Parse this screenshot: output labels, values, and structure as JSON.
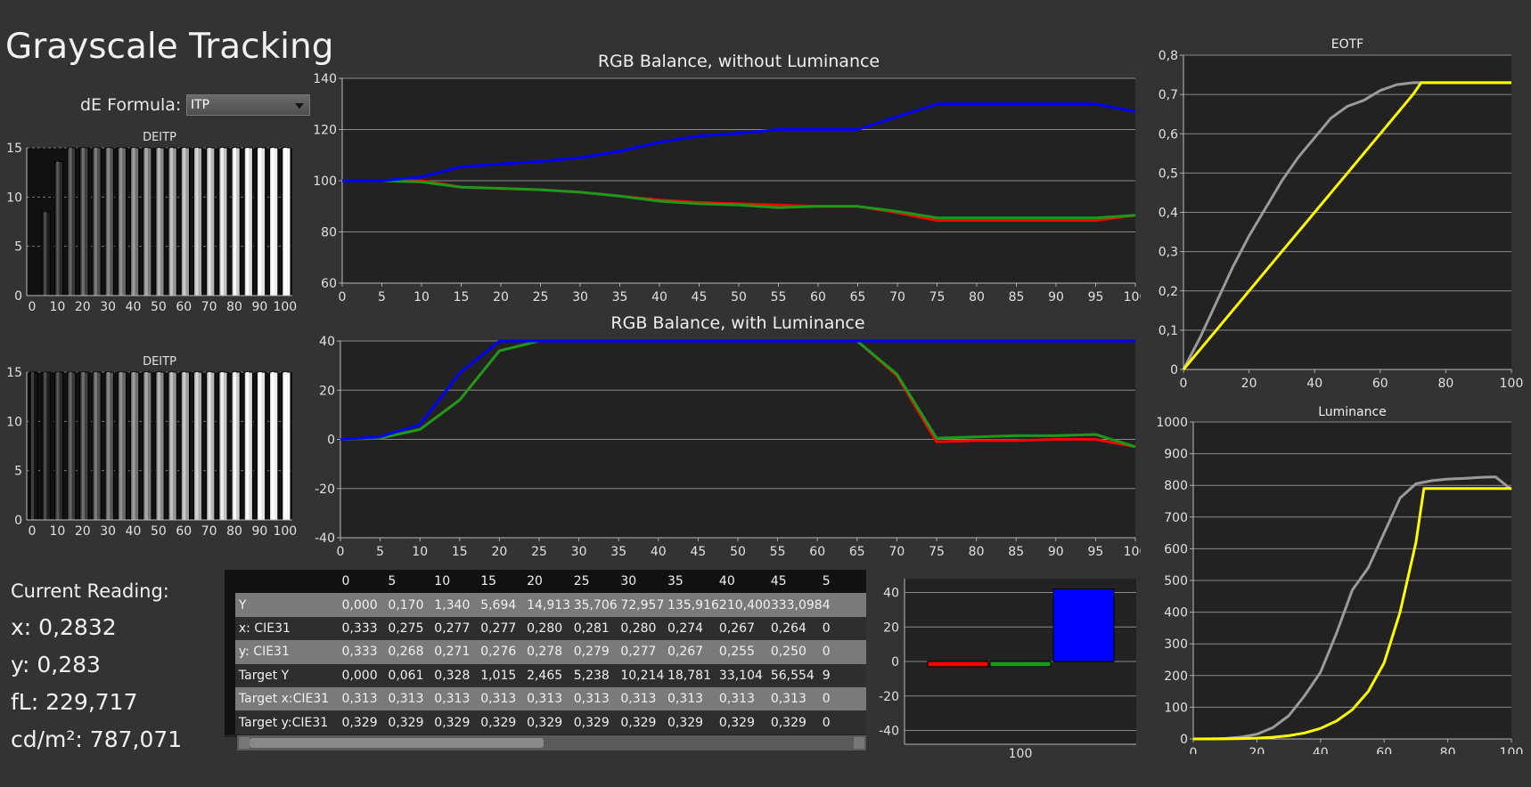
{
  "title": "Grayscale Tracking",
  "de_formula": {
    "label": "dE Formula:",
    "value": "ITP"
  },
  "chart_data": [
    {
      "id": "deitp-1",
      "type": "bar",
      "title": "DEITP",
      "x": [
        0,
        5,
        10,
        15,
        20,
        25,
        30,
        35,
        40,
        45,
        50,
        55,
        60,
        65,
        70,
        75,
        80,
        85,
        90,
        95,
        100
      ],
      "values": [
        0,
        8.5,
        13.6,
        15,
        15,
        15,
        15,
        15,
        15,
        15,
        15,
        15,
        15,
        15,
        15,
        15,
        15,
        15,
        15,
        15,
        15
      ],
      "ylim": [
        0,
        15
      ],
      "yticks": [
        0,
        5,
        10,
        15
      ],
      "xticks_top": [
        "0",
        "10",
        "20",
        "30",
        "40",
        "50",
        "60",
        "70",
        "80",
        "90",
        "100"
      ],
      "xticks_bottom": [
        "5",
        "15",
        "25",
        "35",
        "45",
        "55",
        "65",
        "75",
        "85",
        "95"
      ]
    },
    {
      "id": "deitp-2",
      "type": "bar",
      "title": "DEITP",
      "x": [
        0,
        5,
        10,
        15,
        20,
        25,
        30,
        35,
        40,
        45,
        50,
        55,
        60,
        65,
        70,
        75,
        80,
        85,
        90,
        95,
        100
      ],
      "values": [
        15,
        15,
        15,
        15,
        15,
        15,
        15,
        15,
        15,
        15,
        15,
        15,
        15,
        15,
        15,
        15,
        15,
        15,
        15,
        15,
        15
      ],
      "ylim": [
        0,
        15
      ],
      "yticks": [
        0,
        5,
        10,
        15
      ],
      "xticks_top": [
        "0",
        "10",
        "20",
        "30",
        "40",
        "50",
        "60",
        "70",
        "80",
        "90",
        "100"
      ],
      "xticks_bottom": [
        "5",
        "15",
        "25",
        "35",
        "45",
        "55",
        "65",
        "75",
        "85",
        "95"
      ]
    },
    {
      "id": "rgb-no-lum",
      "type": "line",
      "title": "RGB Balance, without Luminance",
      "x": [
        0,
        5,
        10,
        15,
        20,
        25,
        30,
        35,
        40,
        45,
        50,
        55,
        60,
        65,
        70,
        75,
        80,
        85,
        90,
        95,
        100
      ],
      "xlim": [
        0,
        100
      ],
      "ylim": [
        60,
        140
      ],
      "yticks": [
        60,
        80,
        100,
        120,
        140
      ],
      "series": [
        {
          "color": "#ff0000",
          "values": [
            100,
            100,
            100,
            97.5,
            97,
            96.5,
            95.5,
            94,
            92.5,
            91.5,
            91,
            90.5,
            90,
            90,
            87.5,
            84.5,
            84.5,
            84.5,
            84.5,
            84.5,
            86.5
          ]
        },
        {
          "color": "#1a9a1a",
          "values": [
            100,
            100,
            99.5,
            97.5,
            97,
            96.5,
            95.5,
            94,
            92,
            91,
            90.5,
            89.5,
            90,
            90,
            88,
            85.5,
            85.5,
            85.5,
            85.5,
            85.5,
            86.5
          ]
        },
        {
          "color": "#0000ff",
          "values": [
            100,
            100,
            101.5,
            105.5,
            106.5,
            107.5,
            109,
            111.5,
            115,
            117.5,
            118.5,
            120,
            120,
            120,
            125,
            130,
            130,
            130,
            130,
            130,
            127
          ]
        }
      ]
    },
    {
      "id": "rgb-with-lum",
      "type": "line",
      "title": "RGB Balance, with Luminance",
      "x": [
        0,
        5,
        10,
        15,
        20,
        25,
        30,
        35,
        40,
        45,
        50,
        55,
        60,
        65,
        70,
        75,
        80,
        85,
        90,
        95,
        100
      ],
      "xlim": [
        0,
        100
      ],
      "ylim": [
        -40,
        40
      ],
      "yticks": [
        -40,
        -20,
        0,
        20,
        40
      ],
      "series": [
        {
          "color": "#ff0000",
          "values": [
            0,
            0.5,
            4,
            16,
            36,
            40,
            40,
            40,
            40,
            40,
            40,
            40,
            40,
            40,
            26,
            -1,
            -0.5,
            -0.5,
            0,
            0,
            -3
          ]
        },
        {
          "color": "#1a9a1a",
          "values": [
            0,
            0.5,
            4,
            16,
            36,
            40,
            40,
            40,
            40,
            40,
            40,
            40,
            40,
            40,
            26.5,
            0.5,
            1,
            1.5,
            1.5,
            2,
            -3
          ]
        },
        {
          "color": "#0000ff",
          "values": [
            0,
            1,
            6,
            27,
            40,
            40,
            40,
            40,
            40,
            40,
            40,
            40,
            40,
            40,
            40,
            40,
            40,
            40,
            40,
            40,
            40
          ]
        }
      ]
    },
    {
      "id": "rgb-bar-100",
      "type": "bar",
      "categories": [
        "100"
      ],
      "ylim": [
        -48,
        48
      ],
      "yticks": [
        -40,
        -20,
        0,
        20,
        40
      ],
      "series": [
        {
          "color": "#ff0000",
          "values": [
            -3
          ]
        },
        {
          "color": "#1a9a1a",
          "values": [
            -3
          ]
        },
        {
          "color": "#0000ff",
          "values": [
            42
          ]
        }
      ]
    },
    {
      "id": "eotf",
      "type": "line",
      "title": "EOTF",
      "xlim": [
        0,
        100
      ],
      "ylim": [
        0,
        0.8
      ],
      "xticks": [
        0,
        20,
        40,
        60,
        80,
        100
      ],
      "yticks": [
        0,
        0.1,
        0.2,
        0.3,
        0.4,
        0.5,
        0.6,
        0.7,
        0.8
      ],
      "ytick_labels": [
        "0",
        "0,1",
        "0,2",
        "0,3",
        "0,4",
        "0,5",
        "0,6",
        "0,7",
        "0,8"
      ],
      "series": [
        {
          "color": "#9a9a9a",
          "x": [
            0,
            5,
            10,
            15,
            20,
            25,
            30,
            35,
            40,
            45,
            50,
            55,
            60,
            65,
            70,
            75,
            80,
            85,
            90,
            95,
            100
          ],
          "values": [
            0,
            0.08,
            0.17,
            0.26,
            0.34,
            0.41,
            0.48,
            0.54,
            0.59,
            0.64,
            0.67,
            0.685,
            0.71,
            0.725,
            0.73,
            0.73,
            0.73,
            0.73,
            0.73,
            0.73,
            0.73
          ]
        },
        {
          "color": "#ffff00",
          "x": [
            0,
            5,
            10,
            15,
            20,
            25,
            30,
            35,
            40,
            45,
            50,
            55,
            60,
            65,
            70,
            72.5,
            75,
            80,
            85,
            90,
            95,
            100
          ],
          "values": [
            0,
            0.05,
            0.1,
            0.15,
            0.2,
            0.25,
            0.3,
            0.35,
            0.4,
            0.45,
            0.5,
            0.55,
            0.6,
            0.65,
            0.7,
            0.73,
            0.73,
            0.73,
            0.73,
            0.73,
            0.73,
            0.73
          ]
        }
      ]
    },
    {
      "id": "luminance",
      "type": "line",
      "title": "Luminance",
      "xlim": [
        0,
        100
      ],
      "ylim": [
        0,
        1000
      ],
      "xticks": [
        0,
        20,
        40,
        60,
        80,
        100
      ],
      "yticks": [
        0,
        100,
        200,
        300,
        400,
        500,
        600,
        700,
        800,
        900,
        1000
      ],
      "series": [
        {
          "color": "#9a9a9a",
          "x": [
            0,
            5,
            10,
            15,
            20,
            25,
            30,
            35,
            40,
            45,
            50,
            55,
            60,
            65,
            70,
            75,
            80,
            85,
            90,
            95,
            100
          ],
          "values": [
            0,
            0.2,
            1.3,
            5.7,
            14.9,
            35.7,
            73,
            135.9,
            210.4,
            333.1,
            470,
            540,
            650,
            760,
            805,
            815,
            820,
            822,
            825,
            827,
            787
          ]
        },
        {
          "color": "#ffff00",
          "x": [
            0,
            5,
            10,
            15,
            20,
            25,
            30,
            35,
            40,
            45,
            50,
            55,
            60,
            65,
            70,
            72.5,
            75,
            80,
            85,
            90,
            95,
            100
          ],
          "values": [
            0,
            0.06,
            0.33,
            1.0,
            2.5,
            5.2,
            10.2,
            18.8,
            33.1,
            56.6,
            92,
            150,
            240,
            400,
            620,
            790,
            790,
            790,
            790,
            790,
            790,
            790
          ]
        }
      ]
    },
    {
      "id": "readings-table",
      "type": "table",
      "columns": [
        "0",
        "5",
        "10",
        "15",
        "20",
        "25",
        "30",
        "35",
        "40",
        "45",
        "5"
      ],
      "rows": [
        {
          "label": "Y",
          "values": [
            "0,000",
            "0,170",
            "1,340",
            "5,694",
            "14,913",
            "35,706",
            "72,957",
            "135,916",
            "210,400",
            "333,098",
            "4"
          ]
        },
        {
          "label": "x: CIE31",
          "values": [
            "0,333",
            "0,275",
            "0,277",
            "0,277",
            "0,280",
            "0,281",
            "0,280",
            "0,274",
            "0,267",
            "0,264",
            "0"
          ]
        },
        {
          "label": "y: CIE31",
          "values": [
            "0,333",
            "0,268",
            "0,271",
            "0,276",
            "0,278",
            "0,279",
            "0,277",
            "0,267",
            "0,255",
            "0,250",
            "0"
          ]
        },
        {
          "label": "Target Y",
          "values": [
            "0,000",
            "0,061",
            "0,328",
            "1,015",
            "2,465",
            "5,238",
            "10,214",
            "18,781",
            "33,104",
            "56,554",
            "9"
          ]
        },
        {
          "label": "Target x:CIE31",
          "values": [
            "0,313",
            "0,313",
            "0,313",
            "0,313",
            "0,313",
            "0,313",
            "0,313",
            "0,313",
            "0,313",
            "0,313",
            "0"
          ]
        },
        {
          "label": "Target y:CIE31",
          "values": [
            "0,329",
            "0,329",
            "0,329",
            "0,329",
            "0,329",
            "0,329",
            "0,329",
            "0,329",
            "0,329",
            "0,329",
            "0"
          ]
        }
      ]
    }
  ],
  "current_reading": {
    "title": "Current Reading:",
    "x": "x: 0,2832",
    "y": "y: 0,283",
    "fl": "fL: 229,717",
    "cd": "cd/m²: 787,071"
  }
}
